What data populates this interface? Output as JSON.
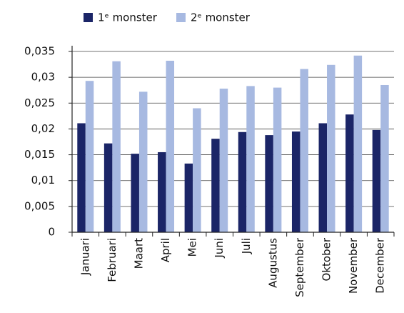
{
  "chart_data": {
    "type": "bar",
    "categories": [
      "Januari",
      "Februari",
      "Maart",
      "April",
      "Mei",
      "Juni",
      "Juli",
      "Augustus",
      "September",
      "Oktober",
      "November",
      "December"
    ],
    "series": [
      {
        "name": "1ᵉ monster",
        "color": "#1b2567",
        "values": [
          0.0211,
          0.0172,
          0.0152,
          0.0155,
          0.0133,
          0.0181,
          0.0194,
          0.0188,
          0.0195,
          0.0211,
          0.0228,
          0.0198
        ]
      },
      {
        "name": "2ᵉ monster",
        "color": "#a7b9e1",
        "values": [
          0.0293,
          0.0331,
          0.0272,
          0.0332,
          0.024,
          0.0278,
          0.0283,
          0.028,
          0.0316,
          0.0324,
          0.0342,
          0.0285
        ]
      }
    ],
    "ylim": [
      0,
      0.035
    ],
    "yticks": [
      0,
      {
        "value": 0.005,
        "label": "0,005"
      },
      {
        "value": 0.01,
        "label": "0,01"
      },
      {
        "value": 0.015,
        "label": "0,015"
      },
      {
        "value": 0.02,
        "label": "0,02"
      },
      {
        "value": 0.025,
        "label": "0,025"
      },
      {
        "value": 0.03,
        "label": "0,03"
      },
      {
        "value": 0.035,
        "label": "0,035"
      }
    ],
    "grid": true
  }
}
